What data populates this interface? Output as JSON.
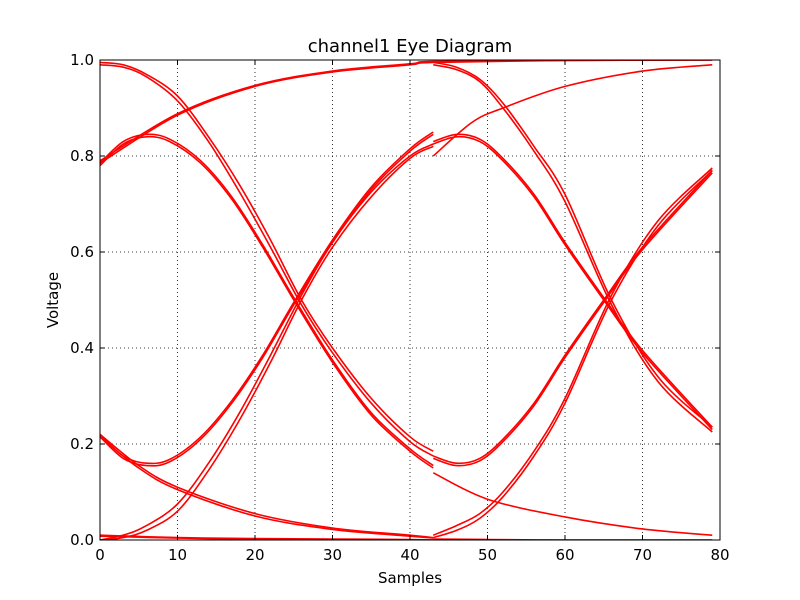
{
  "chart_data": {
    "type": "line",
    "title": "channel1 Eye Diagram",
    "xlabel": "Samples",
    "ylabel": "Voltage",
    "xlim": [
      0,
      80
    ],
    "ylim": [
      0.0,
      1.0
    ],
    "xticks": [
      "0",
      "10",
      "20",
      "30",
      "40",
      "50",
      "60",
      "70",
      "80"
    ],
    "yticks": [
      "0.0",
      "0.2",
      "0.4",
      "0.6",
      "0.8",
      "1.0"
    ],
    "xtick_values": [
      0,
      10,
      20,
      30,
      40,
      50,
      60,
      70,
      80
    ],
    "ytick_values": [
      0.0,
      0.2,
      0.4,
      0.6,
      0.8,
      1.0
    ],
    "grid": true,
    "line_color": "#ff0000",
    "series": [
      {
        "x": [
          0,
          10,
          20,
          30,
          40,
          43,
          60,
          79
        ],
        "y": [
          0.785,
          0.885,
          0.945,
          0.975,
          0.99,
          0.995,
          0.999,
          1.0
        ]
      },
      {
        "x": [
          0,
          10,
          20,
          30,
          40,
          43,
          60,
          79
        ],
        "y": [
          0.79,
          0.888,
          0.947,
          0.977,
          0.992,
          0.997,
          0.999,
          1.0
        ]
      },
      {
        "x": [
          43,
          48,
          52,
          60,
          70,
          79
        ],
        "y": [
          0.8,
          0.87,
          0.9,
          0.945,
          0.977,
          0.99
        ]
      },
      {
        "x": [
          0,
          3,
          6,
          10,
          14,
          18,
          22,
          26,
          30,
          35,
          40,
          43
        ],
        "y": [
          0.995,
          0.99,
          0.97,
          0.925,
          0.84,
          0.74,
          0.625,
          0.5,
          0.4,
          0.295,
          0.215,
          0.185
        ]
      },
      {
        "x": [
          0,
          3,
          6,
          10,
          14,
          18,
          22,
          26,
          30,
          35,
          40,
          43
        ],
        "y": [
          0.99,
          0.985,
          0.965,
          0.915,
          0.83,
          0.725,
          0.61,
          0.49,
          0.39,
          0.285,
          0.205,
          0.175
        ]
      },
      {
        "x": [
          43,
          46,
          49,
          52,
          56,
          60,
          66,
          72,
          79
        ],
        "y": [
          0.995,
          0.985,
          0.96,
          0.91,
          0.82,
          0.72,
          0.5,
          0.34,
          0.235
        ]
      },
      {
        "x": [
          43,
          46,
          49,
          52,
          56,
          60,
          66,
          72,
          79
        ],
        "y": [
          0.99,
          0.98,
          0.955,
          0.9,
          0.81,
          0.705,
          0.49,
          0.33,
          0.225
        ]
      },
      {
        "x": [
          0,
          3,
          6,
          9,
          13,
          17,
          21,
          25,
          30,
          35,
          40,
          43
        ],
        "y": [
          0.78,
          0.825,
          0.84,
          0.83,
          0.785,
          0.71,
          0.61,
          0.5,
          0.37,
          0.26,
          0.185,
          0.15
        ]
      },
      {
        "x": [
          0,
          3,
          6,
          9,
          13,
          17,
          21,
          25,
          30,
          35,
          40,
          43
        ],
        "y": [
          0.785,
          0.83,
          0.845,
          0.835,
          0.79,
          0.715,
          0.615,
          0.505,
          0.375,
          0.265,
          0.19,
          0.155
        ]
      },
      {
        "x": [
          43,
          46,
          49,
          52,
          56,
          60,
          65,
          70,
          79
        ],
        "y": [
          0.825,
          0.84,
          0.83,
          0.79,
          0.715,
          0.615,
          0.5,
          0.39,
          0.23
        ]
      },
      {
        "x": [
          43,
          46,
          49,
          52,
          56,
          60,
          65,
          70,
          79
        ],
        "y": [
          0.83,
          0.845,
          0.835,
          0.795,
          0.72,
          0.62,
          0.505,
          0.395,
          0.235
        ]
      },
      {
        "x": [
          0,
          5,
          10,
          20,
          30,
          40,
          43
        ],
        "y": [
          0.22,
          0.155,
          0.11,
          0.055,
          0.025,
          0.01,
          0.005
        ]
      },
      {
        "x": [
          0,
          5,
          10,
          20,
          30,
          40,
          43
        ],
        "y": [
          0.215,
          0.15,
          0.105,
          0.05,
          0.022,
          0.008,
          0.004
        ]
      },
      {
        "x": [
          43,
          50,
          60,
          70,
          79
        ],
        "y": [
          0.14,
          0.085,
          0.048,
          0.023,
          0.01
        ]
      },
      {
        "x": [
          0,
          3,
          6,
          9,
          13,
          17,
          21,
          25,
          30,
          35,
          40,
          43
        ],
        "y": [
          0.22,
          0.175,
          0.16,
          0.168,
          0.215,
          0.29,
          0.385,
          0.495,
          0.625,
          0.735,
          0.815,
          0.85
        ]
      },
      {
        "x": [
          0,
          3,
          6,
          9,
          13,
          17,
          21,
          25,
          30,
          35,
          40,
          43
        ],
        "y": [
          0.215,
          0.17,
          0.155,
          0.163,
          0.21,
          0.285,
          0.38,
          0.49,
          0.62,
          0.73,
          0.81,
          0.845
        ]
      },
      {
        "x": [
          43,
          46,
          49,
          52,
          56,
          60,
          65,
          70,
          79
        ],
        "y": [
          0.175,
          0.16,
          0.17,
          0.21,
          0.285,
          0.385,
          0.5,
          0.61,
          0.77
        ]
      },
      {
        "x": [
          43,
          46,
          49,
          52,
          56,
          60,
          65,
          70,
          79
        ],
        "y": [
          0.17,
          0.155,
          0.165,
          0.205,
          0.28,
          0.38,
          0.495,
          0.605,
          0.765
        ]
      },
      {
        "x": [
          0,
          3,
          6,
          10,
          14,
          18,
          22,
          26,
          30,
          35,
          40,
          43
        ],
        "y": [
          0.0,
          0.005,
          0.02,
          0.06,
          0.145,
          0.25,
          0.37,
          0.5,
          0.61,
          0.715,
          0.795,
          0.82
        ]
      },
      {
        "x": [
          0,
          3,
          6,
          10,
          14,
          18,
          22,
          26,
          30,
          35,
          40,
          43
        ],
        "y": [
          0.0,
          0.01,
          0.03,
          0.075,
          0.16,
          0.265,
          0.385,
          0.51,
          0.62,
          0.725,
          0.8,
          0.825
        ]
      },
      {
        "x": [
          43,
          46,
          49,
          52,
          56,
          60,
          66,
          72,
          79
        ],
        "y": [
          0.005,
          0.02,
          0.045,
          0.09,
          0.175,
          0.285,
          0.5,
          0.655,
          0.77
        ]
      },
      {
        "x": [
          43,
          46,
          49,
          52,
          56,
          60,
          66,
          72,
          79
        ],
        "y": [
          0.01,
          0.03,
          0.055,
          0.1,
          0.185,
          0.295,
          0.51,
          0.665,
          0.775
        ]
      },
      {
        "x": [
          0,
          10,
          20,
          30,
          40,
          43
        ],
        "y": [
          0.008,
          0.004,
          0.002,
          0.001,
          0.0,
          0.0
        ]
      },
      {
        "x": [
          0,
          10,
          20,
          30,
          40,
          43
        ],
        "y": [
          0.01,
          0.005,
          0.003,
          0.002,
          0.001,
          0.0
        ]
      },
      {
        "x": [
          43,
          50,
          60,
          70,
          79
        ],
        "y": [
          0.0,
          0.0,
          0.0,
          0.0,
          0.0
        ]
      },
      {
        "x": [
          43,
          50,
          60,
          70,
          79
        ],
        "y": [
          0.002,
          0.001,
          0.0,
          0.0,
          0.0
        ]
      }
    ]
  }
}
